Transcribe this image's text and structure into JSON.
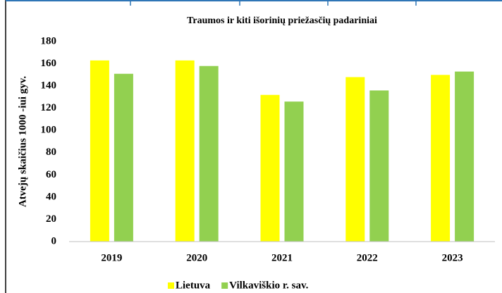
{
  "chart_data": {
    "type": "bar",
    "title": "Traumos ir kiti išorinių priežasčių padariniai",
    "ylabel": "Atvejų skaičius 1000 -iui gyv.",
    "categories": [
      "2019",
      "2020",
      "2021",
      "2022",
      "2023"
    ],
    "series": [
      {
        "name": "Lietuva",
        "color": "#ffff00",
        "values": [
          163,
          163,
          132,
          148,
          150
        ]
      },
      {
        "name": "Vilkaviškio r. sav.",
        "color": "#92d050",
        "values": [
          151,
          158,
          126,
          136,
          153
        ]
      }
    ],
    "ylim": [
      0,
      180
    ],
    "yticks": [
      0,
      20,
      40,
      60,
      80,
      100,
      120,
      140,
      160,
      180
    ],
    "grid": false
  }
}
